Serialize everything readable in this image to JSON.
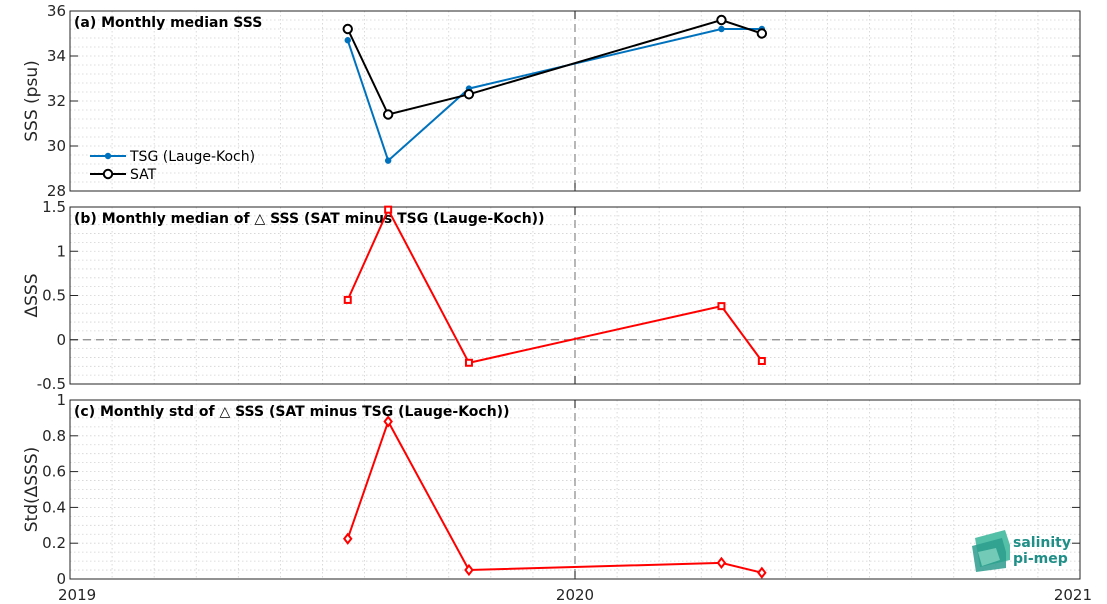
{
  "chart_data": [
    {
      "type": "line",
      "title": "(a) Monthly median SSS",
      "ylabel": "SSS (psu)",
      "xlim": [
        2019,
        2021
      ],
      "ylim": [
        28,
        36
      ],
      "yticks": [
        "28",
        "30",
        "32",
        "34",
        "36"
      ],
      "grid": true,
      "legend_position": "bottom-left",
      "series": [
        {
          "name": "TSG (Lauge-Koch)",
          "color": "#0072bd",
          "marker": "dot",
          "x": [
            2019.55,
            2019.63,
            2019.79,
            2020.29,
            2020.37
          ],
          "y": [
            34.7,
            29.35,
            32.55,
            35.2,
            35.2
          ]
        },
        {
          "name": "SAT",
          "color": "#000000",
          "marker": "circle",
          "x": [
            2019.55,
            2019.63,
            2019.79,
            2020.29,
            2020.37
          ],
          "y": [
            35.2,
            31.4,
            32.3,
            35.6,
            35.0
          ]
        }
      ]
    },
    {
      "type": "line",
      "title": "(b) Monthly median of △ SSS (SAT minus TSG (Lauge-Koch))",
      "ylabel": "ΔSSS",
      "xlim": [
        2019,
        2021
      ],
      "ylim": [
        -0.5,
        1.5
      ],
      "yticks": [
        "-0.5",
        "0",
        "0.5",
        "1",
        "1.5"
      ],
      "grid": true,
      "series": [
        {
          "color": "#ff0000",
          "marker": "square",
          "x": [
            2019.55,
            2019.63,
            2019.79,
            2020.29,
            2020.37
          ],
          "y": [
            0.45,
            1.47,
            -0.26,
            0.38,
            -0.24
          ]
        }
      ]
    },
    {
      "type": "line",
      "title": "(c) Monthly std of △ SSS (SAT minus TSG (Lauge-Koch))",
      "ylabel": "Std(ΔSSS)",
      "xlim": [
        2019,
        2021
      ],
      "ylim": [
        0,
        1
      ],
      "yticks": [
        "0",
        "0.2",
        "0.4",
        "0.6",
        "0.8",
        "1"
      ],
      "xticks": [
        "2019",
        "2020",
        "2021"
      ],
      "grid": true,
      "series": [
        {
          "color": "#ff0000",
          "marker": "diamond",
          "x": [
            2019.55,
            2019.63,
            2019.79,
            2020.29,
            2020.37
          ],
          "y": [
            0.225,
            0.88,
            0.05,
            0.09,
            0.035
          ]
        }
      ]
    }
  ],
  "logo": {
    "line1": "salinity",
    "line2": "pi-mep"
  }
}
